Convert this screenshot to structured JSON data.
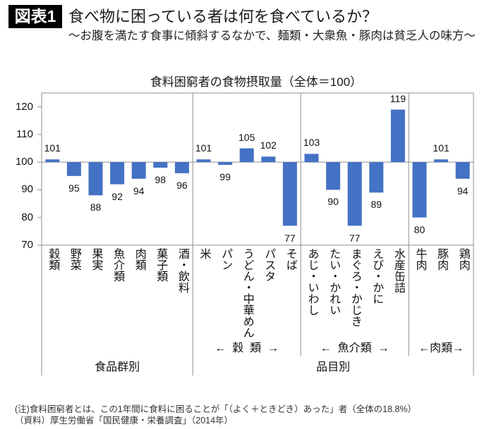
{
  "header": {
    "badge": "図表1",
    "title": "食べ物に困っている者は何を食べているか？",
    "subtitle": "〜お腹を満たす食事に傾斜するなかで、麺類・大衆魚・豚肉は貧乏人の味方〜"
  },
  "chart_data": {
    "type": "bar",
    "title": "食料困窮者の食物摂取量（全体＝100）",
    "xlabel": "",
    "ylabel": "",
    "ylim": [
      70,
      125
    ],
    "yticks": [
      "70",
      "80",
      "90",
      "100",
      "110",
      "120"
    ],
    "baseline": 100,
    "grid": false,
    "legend": "none",
    "categories": [
      "穀類",
      "野菜",
      "果実",
      "魚介類",
      "肉類",
      "菓子類",
      "酒・飲料",
      "米",
      "パン",
      "うどん・中華めん",
      "パスタ",
      "そば",
      "あじ・いわし",
      "たい・かれい",
      "まぐろ・かじき",
      "えび・かに",
      "水産缶詰",
      "牛肉",
      "豚肉",
      "鶏肉"
    ],
    "values": [
      101,
      95,
      88,
      92,
      94,
      98,
      96,
      101,
      99,
      105,
      102,
      77,
      103,
      90,
      77,
      89,
      119,
      80,
      101,
      94
    ],
    "sections": [
      {
        "label": "食品群別",
        "start": 0,
        "count": 7
      },
      {
        "label": "品目別",
        "start": 7,
        "count": 13
      }
    ],
    "subgroups": [
      {
        "label": "←  穀  類  →",
        "start": 7,
        "count": 5
      },
      {
        "label": "←  魚介類  →",
        "start": 12,
        "count": 5
      },
      {
        "label": "←肉類→",
        "start": 17,
        "count": 3
      }
    ],
    "colors": {
      "bar": "#4472C4",
      "lines": "#8F8F8F"
    }
  },
  "footnotes": [
    "(注)食料困窮者とは、この1年間に食料に困ることが「（よく＋ときどき）あった」者（全体の18.8%）",
    "（資料）厚生労働省「国民健康・栄養調査」（2014年）"
  ]
}
